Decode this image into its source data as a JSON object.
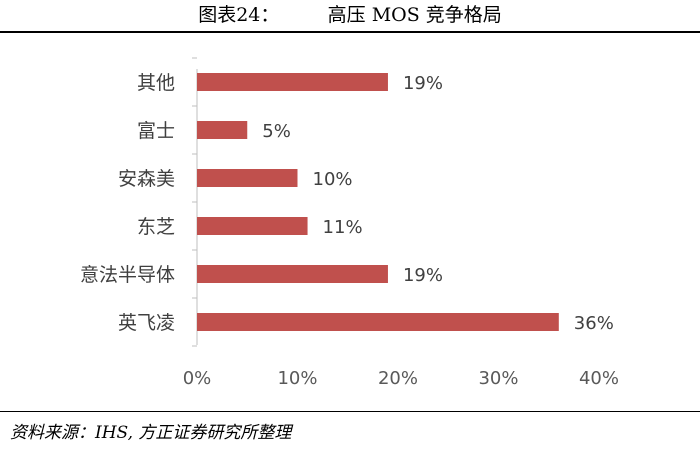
{
  "header": {
    "title": "图表24：        高压 MOS 竞争格局"
  },
  "footer": {
    "source": "资料来源：IHS, 方正证券研究所整理"
  },
  "chart_data": {
    "type": "bar",
    "orientation": "horizontal",
    "categories": [
      "其他",
      "富士",
      "安森美",
      "东芝",
      "意法半导体",
      "英飞凌"
    ],
    "values": [
      19,
      5,
      10,
      11,
      19,
      36
    ],
    "value_labels": [
      "19%",
      "5%",
      "10%",
      "11%",
      "19%",
      "36%"
    ],
    "x_ticks": [
      "0%",
      "10%",
      "20%",
      "30%",
      "40%"
    ],
    "xlim": [
      0,
      40
    ],
    "grid": false,
    "legend": "none",
    "bar_color": "#c0504d"
  }
}
